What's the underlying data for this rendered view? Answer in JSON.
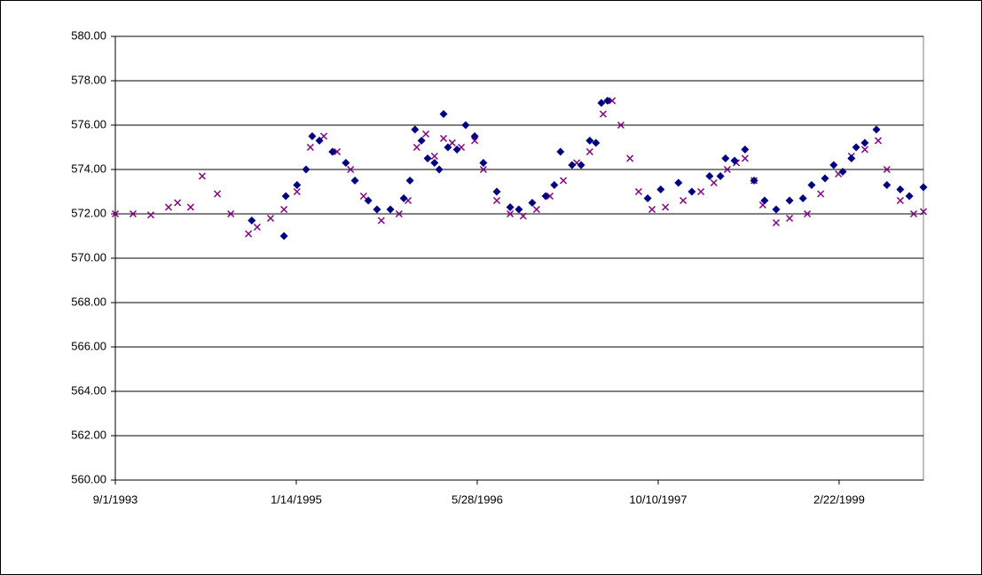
{
  "chart_data": {
    "type": "scatter",
    "xlim": [
      34213,
      36446
    ],
    "xticks": [
      {
        "value": 34213,
        "label": "9/1/1993"
      },
      {
        "value": 34713,
        "label": "1/14/1995"
      },
      {
        "value": 35213,
        "label": "5/28/1996"
      },
      {
        "value": 35713,
        "label": "10/10/1997"
      },
      {
        "value": 36213,
        "label": "2/22/1999"
      }
    ],
    "ylim": [
      560,
      580
    ],
    "yticks": [
      {
        "value": 560,
        "label": "560.00"
      },
      {
        "value": 562,
        "label": "562.00"
      },
      {
        "value": 564,
        "label": "564.00"
      },
      {
        "value": 566,
        "label": "566.00"
      },
      {
        "value": 568,
        "label": "568.00"
      },
      {
        "value": 570,
        "label": "570.00"
      },
      {
        "value": 572,
        "label": "572.00"
      },
      {
        "value": 574,
        "label": "574.00"
      },
      {
        "value": 576,
        "label": "576.00"
      },
      {
        "value": 578,
        "label": "578.00"
      },
      {
        "value": 580,
        "label": "580.00"
      }
    ],
    "grid": true,
    "series": [
      {
        "color": "#800080",
        "marker": "x",
        "x": [
          34213,
          34262,
          34311,
          34360,
          34385,
          34421,
          34453,
          34495,
          34532,
          34581,
          34605,
          34642,
          34679,
          34715,
          34752,
          34789,
          34826,
          34863,
          34899,
          34948,
          34997,
          35022,
          35046,
          35071,
          35095,
          35120,
          35144,
          35169,
          35206,
          35230,
          35267,
          35304,
          35340,
          35377,
          35414,
          35451,
          35488,
          35524,
          35561,
          35586,
          35610,
          35635,
          35659,
          35696,
          35733,
          35782,
          35831,
          35867,
          35904,
          35929,
          35953,
          35978,
          36002,
          36039,
          36076,
          36125,
          36162,
          36211,
          36247,
          36284,
          36321,
          36345,
          36382,
          36419,
          36446
        ],
        "values": [
          572.0,
          572.0,
          571.95,
          572.3,
          572.5,
          572.3,
          573.7,
          572.9,
          572.0,
          571.1,
          571.4,
          571.8,
          572.2,
          573.0,
          575.0,
          575.5,
          574.8,
          574.0,
          572.8,
          571.7,
          572.0,
          572.6,
          575.0,
          575.6,
          574.6,
          575.4,
          575.2,
          575.0,
          575.3,
          574.0,
          572.6,
          572.0,
          571.9,
          572.2,
          572.8,
          573.5,
          574.3,
          574.8,
          576.5,
          577.1,
          576.0,
          574.5,
          573.0,
          572.2,
          572.3,
          572.6,
          573.0,
          573.4,
          574.0,
          574.3,
          574.5,
          573.5,
          572.4,
          571.6,
          571.8,
          572.0,
          572.9,
          573.8,
          574.6,
          574.9,
          575.3,
          574.0,
          572.6,
          572.0,
          572.1
        ]
      },
      {
        "color": "#000080",
        "marker": "diamond",
        "x": [
          34590,
          34679,
          34684,
          34715,
          34740,
          34757,
          34777,
          34813,
          34850,
          34875,
          34912,
          34936,
          34973,
          35010,
          35027,
          35041,
          35059,
          35076,
          35095,
          35108,
          35120,
          35132,
          35157,
          35181,
          35206,
          35230,
          35267,
          35304,
          35328,
          35365,
          35402,
          35426,
          35443,
          35475,
          35500,
          35524,
          35541,
          35556,
          35573,
          35684,
          35720,
          35769,
          35806,
          35855,
          35885,
          35899,
          35924,
          35953,
          35978,
          36007,
          36039,
          36076,
          36113,
          36137,
          36174,
          36198,
          36223,
          36247,
          36260,
          36284,
          36316,
          36345,
          36382,
          36407,
          36446
        ],
        "values": [
          571.7,
          571.0,
          572.8,
          573.3,
          574.0,
          575.5,
          575.3,
          574.8,
          574.3,
          573.5,
          572.6,
          572.2,
          572.2,
          572.7,
          573.5,
          575.8,
          575.3,
          574.5,
          574.3,
          574.0,
          576.5,
          575.0,
          574.9,
          576.0,
          575.5,
          574.3,
          573.0,
          572.3,
          572.2,
          572.5,
          572.8,
          573.3,
          574.8,
          574.2,
          574.2,
          575.3,
          575.2,
          577.0,
          577.1,
          572.7,
          573.1,
          573.4,
          573.0,
          573.7,
          573.7,
          574.5,
          574.4,
          574.9,
          573.5,
          572.6,
          572.2,
          572.6,
          572.7,
          573.3,
          573.6,
          574.2,
          573.9,
          574.5,
          575.0,
          575.2,
          575.8,
          573.3,
          573.1,
          572.8,
          573.2
        ]
      }
    ]
  }
}
